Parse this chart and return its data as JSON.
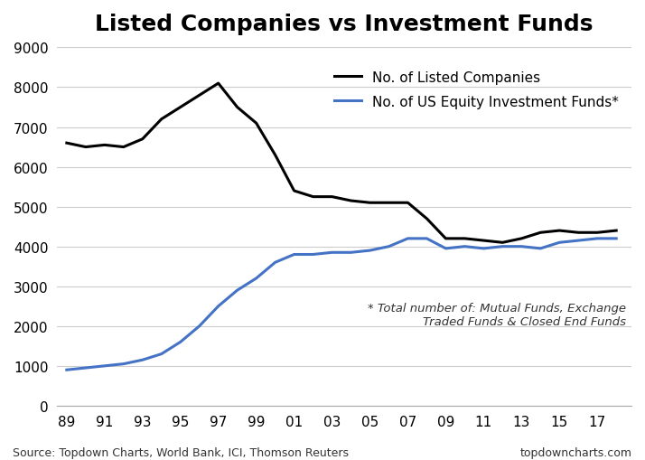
{
  "title": "Listed Companies vs Investment Funds",
  "listed_companies": [
    6600,
    6500,
    6550,
    6500,
    6700,
    7200,
    7500,
    7800,
    8100,
    7500,
    7100,
    6300,
    5400,
    5250,
    5250,
    5150,
    5100,
    5100,
    5100,
    4700,
    4200,
    4200,
    4150,
    4100,
    4200,
    4350,
    4400,
    4350,
    4350,
    4400
  ],
  "investment_funds": [
    900,
    950,
    1000,
    1050,
    1150,
    1300,
    1600,
    2000,
    2500,
    2900,
    3200,
    3600,
    3800,
    3800,
    3850,
    3850,
    3900,
    4000,
    4200,
    4200,
    3950,
    4000,
    3950,
    4000,
    4000,
    3950,
    4100,
    4150,
    4200,
    4200
  ],
  "listed_color": "#000000",
  "funds_color": "#4472c4",
  "listed_label": "No. of Listed Companies",
  "funds_label": "No. of US Equity Investment Funds*",
  "annotation_line1": "* Total number of: Mutual Funds, Exchange",
  "annotation_line2": "Traded Funds & Closed End Funds",
  "source_text": "Source: Topdown Charts, World Bank, ICI, Thomson Reuters",
  "website_text": "topdowncharts.com",
  "ylim": [
    0,
    9000
  ],
  "yticks": [
    0,
    1000,
    2000,
    3000,
    4000,
    5000,
    6000,
    7000,
    8000,
    9000
  ],
  "line_width": 2.2,
  "title_fontsize": 18,
  "tick_fontsize": 11,
  "legend_fontsize": 11,
  "annotation_fontsize": 9.5,
  "source_fontsize": 9
}
